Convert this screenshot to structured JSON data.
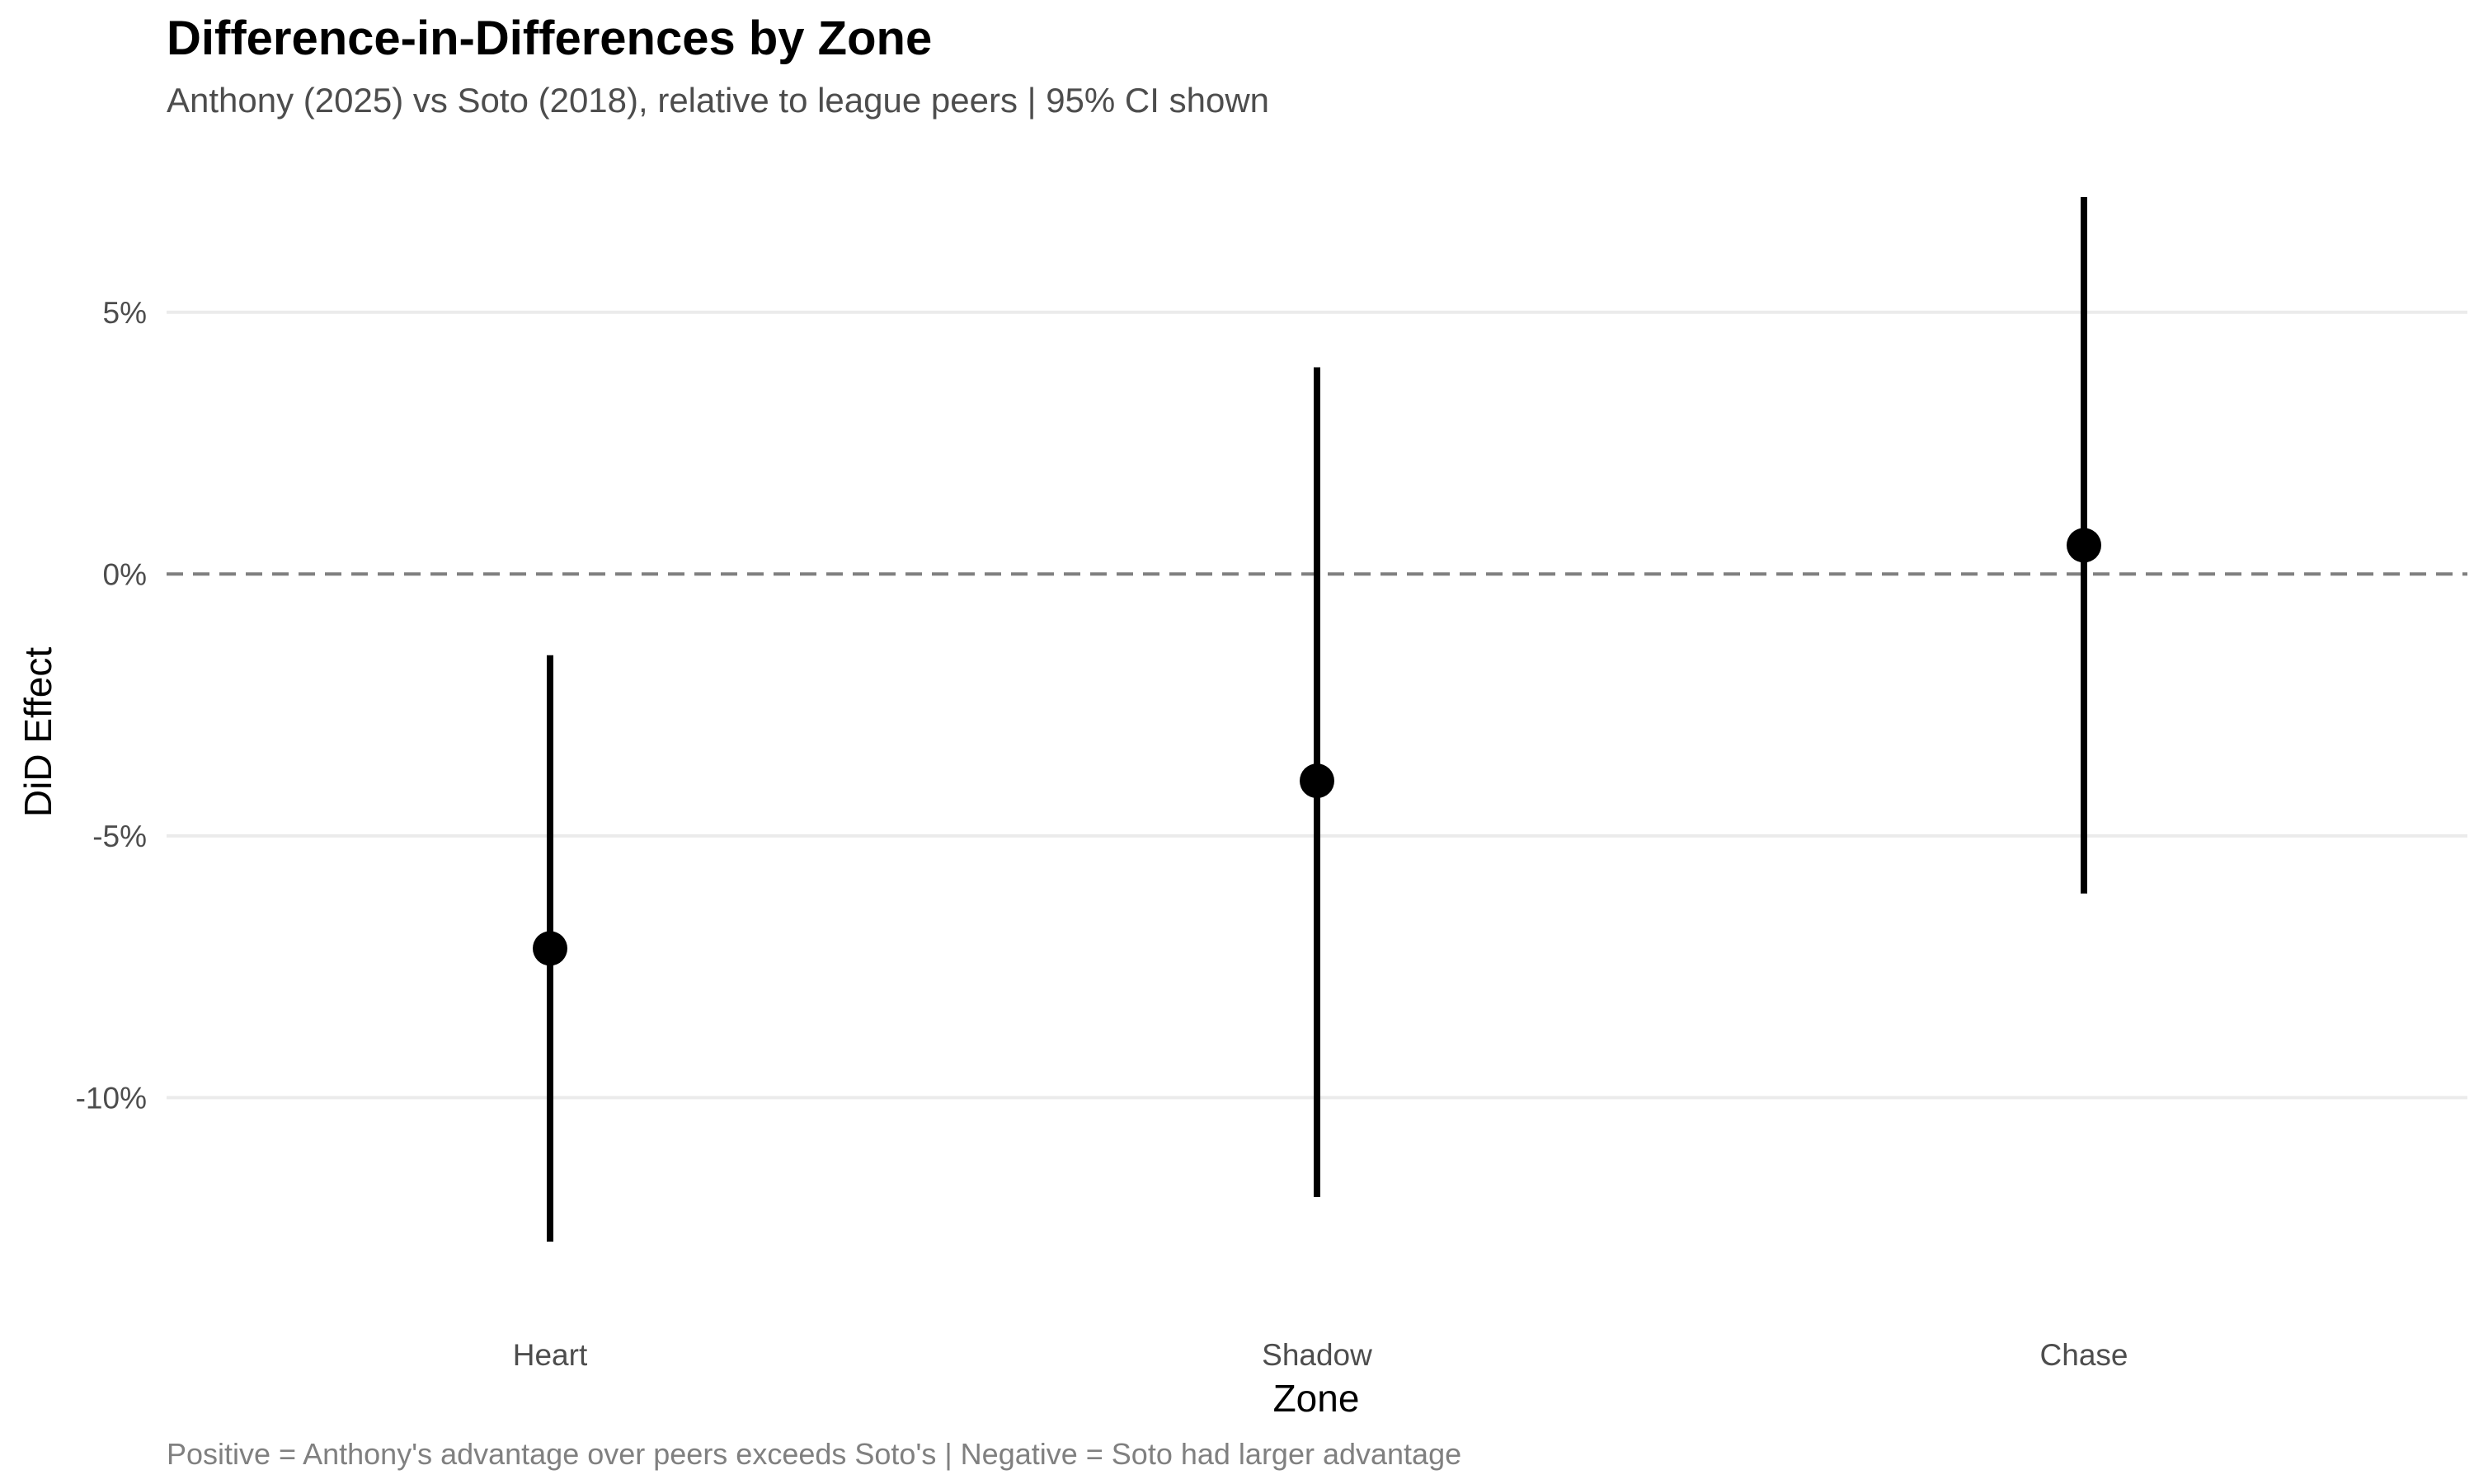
{
  "chart_data": {
    "type": "scatter",
    "title": "Difference-in-Differences by Zone",
    "subtitle": "Anthony (2025) vs Soto (2018), relative to league peers | 95% CI shown",
    "caption": "Positive = Anthony's advantage over peers exceeds Soto's | Negative = Soto had larger advantage",
    "xlabel": "Zone",
    "ylabel": "DiD Effect",
    "categories": [
      "Heart",
      "Shadow",
      "Chase"
    ],
    "values": [
      -7.15,
      -3.95,
      0.55
    ],
    "ci_lower": [
      -12.75,
      -11.9,
      -6.1
    ],
    "ci_upper": [
      -1.55,
      3.95,
      7.2
    ],
    "y_unit": "%",
    "ylim": [
      -13.6,
      7.5
    ],
    "yticks": [
      -10,
      -5,
      0,
      5
    ],
    "ytick_labels": [
      "-10%",
      "-5%",
      "0%",
      "5%"
    ],
    "reference_line": {
      "y": 0,
      "style": "dashed",
      "color": "#7f7f7f"
    },
    "grid": true,
    "legend": "none",
    "colors": {
      "point": "#000000",
      "gridline": "#ebebeb",
      "reference_line": "#7f7f7f"
    }
  }
}
